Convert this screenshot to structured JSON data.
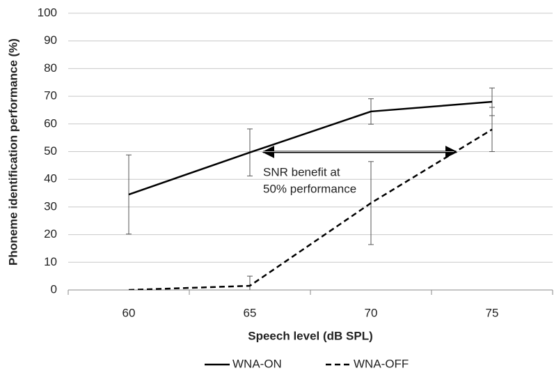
{
  "chart_data": {
    "type": "line",
    "x_label": "Speech level (dB SPL)",
    "y_label": "Phoneme identification performance (%)",
    "categories": [
      "60",
      "65",
      "70",
      "75"
    ],
    "ylim": [
      0,
      100
    ],
    "yticks": [
      0,
      10,
      20,
      30,
      40,
      50,
      60,
      70,
      80,
      90,
      100
    ],
    "grid": true,
    "legend": "bottom",
    "annotation": [
      "SNR benefit at",
      "50% performance"
    ],
    "series": [
      {
        "name": "WNA-ON",
        "color": "#000000",
        "dash": "solid",
        "values": [
          34.5,
          49.7,
          64.5,
          68
        ],
        "errors": [
          14.3,
          8.5,
          4.6,
          5
        ]
      },
      {
        "name": "WNA-OFF",
        "color": "#000000",
        "dash": "dashed",
        "values": [
          0,
          1.5,
          31.4,
          58
        ],
        "errors": [
          null,
          3.5,
          15,
          8
        ]
      }
    ]
  }
}
